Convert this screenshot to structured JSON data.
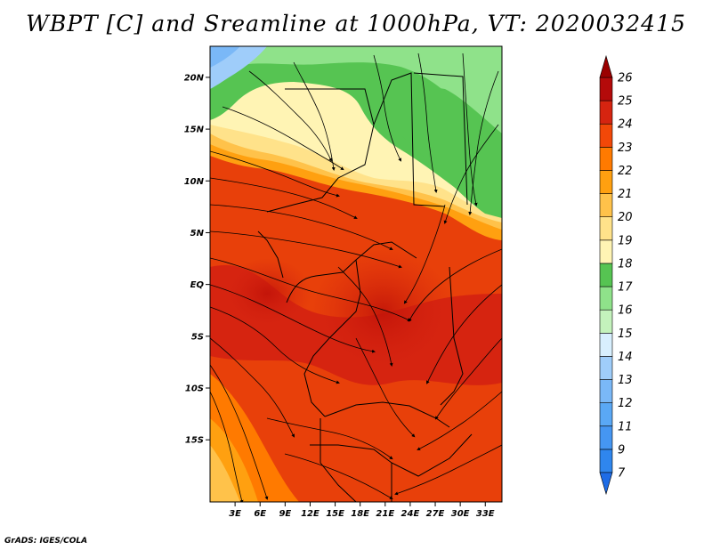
{
  "title": "WBPT [C] and Sreamline at 1000hPa, VT: 2020032415",
  "credit": "GrADS: IGES/COLA",
  "map": {
    "lon_range": [
      0,
      35
    ],
    "lat_range": [
      -21,
      23
    ],
    "lat_labels": [
      "20N",
      "15N",
      "10N",
      "5N",
      "EQ",
      "5S",
      "10S",
      "15S"
    ],
    "lon_labels": [
      "3E",
      "6E",
      "9E",
      "12E",
      "15E",
      "18E",
      "21E",
      "24E",
      "27E",
      "30E",
      "33E"
    ]
  },
  "colorbar": {
    "levels": [
      "7",
      "9",
      "11",
      "12",
      "13",
      "14",
      "15",
      "16",
      "17",
      "18",
      "19",
      "20",
      "21",
      "22",
      "23",
      "24",
      "25",
      "26"
    ],
    "colors": [
      "#1e6ce6",
      "#2f86ee",
      "#4596f2",
      "#5aa8f5",
      "#7ab8f7",
      "#9fcdfa",
      "#d8effe",
      "#c4f2bc",
      "#8fe28a",
      "#56c452",
      "#fff4b4",
      "#ffe28a",
      "#ffc24a",
      "#ffa010",
      "#ff7a00",
      "#f24808",
      "#d62410",
      "#b40a0a",
      "#9a0000"
    ]
  }
}
